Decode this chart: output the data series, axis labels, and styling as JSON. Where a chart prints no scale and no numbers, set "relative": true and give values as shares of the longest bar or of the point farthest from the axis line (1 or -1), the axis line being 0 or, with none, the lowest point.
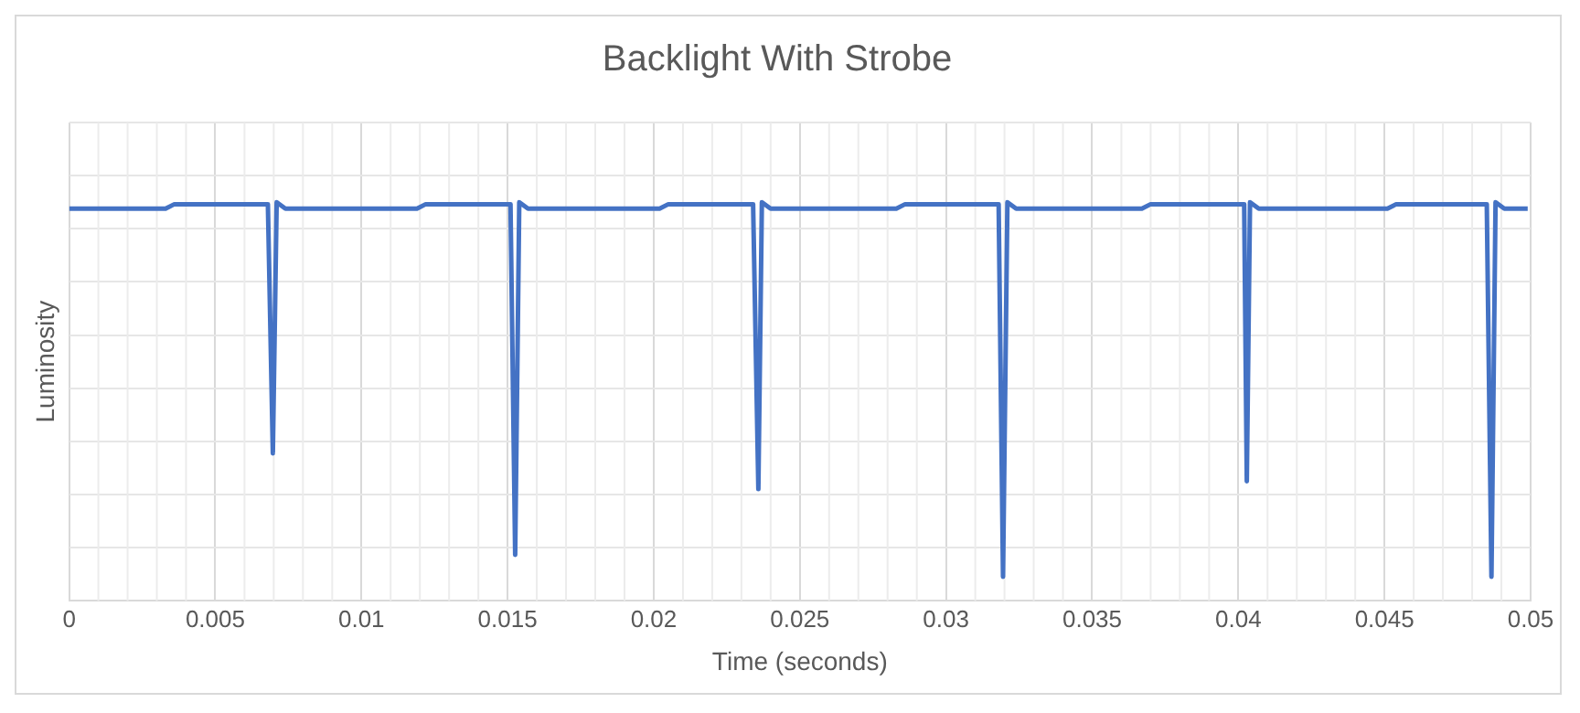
{
  "chart_data": {
    "type": "line",
    "title": "Backlight With Strobe",
    "xlabel": "Time (seconds)",
    "ylabel": "Luminosity",
    "relative": true,
    "grid": true,
    "legend": false,
    "marker": "none",
    "line_style": "solid",
    "xlim": [
      0,
      0.05
    ],
    "xticks": [
      0,
      0.005,
      0.01,
      0.015,
      0.02,
      0.025,
      0.03,
      0.035,
      0.04,
      0.045,
      0.05
    ],
    "series": [
      {
        "color": "#4472c4",
        "x": [
          0,
          0.0033,
          0.0036,
          0.0068,
          0.00697,
          0.0071,
          0.0074,
          0.0119,
          0.0122,
          0.0151,
          0.01526,
          0.0154,
          0.0157,
          0.0202,
          0.0205,
          0.0234,
          0.02358,
          0.0237,
          0.024,
          0.0283,
          0.0286,
          0.0318,
          0.03195,
          0.0321,
          0.0324,
          0.0367,
          0.037,
          0.0402,
          0.04029,
          0.0404,
          0.0407,
          0.0451,
          0.0454,
          0.0485,
          0.04866,
          0.0488,
          0.0491,
          0.0499
        ],
        "values": [
          0.984,
          0.984,
          0.995,
          0.995,
          0.37,
          1.0,
          0.984,
          0.984,
          0.995,
          0.995,
          0.115,
          1.0,
          0.984,
          0.984,
          0.995,
          0.995,
          0.28,
          1.0,
          0.984,
          0.984,
          0.995,
          0.995,
          0.06,
          1.0,
          0.984,
          0.984,
          0.995,
          0.995,
          0.3,
          1.0,
          0.984,
          0.984,
          0.995,
          0.995,
          0.06,
          1.0,
          0.984,
          0.984
        ]
      }
    ]
  }
}
